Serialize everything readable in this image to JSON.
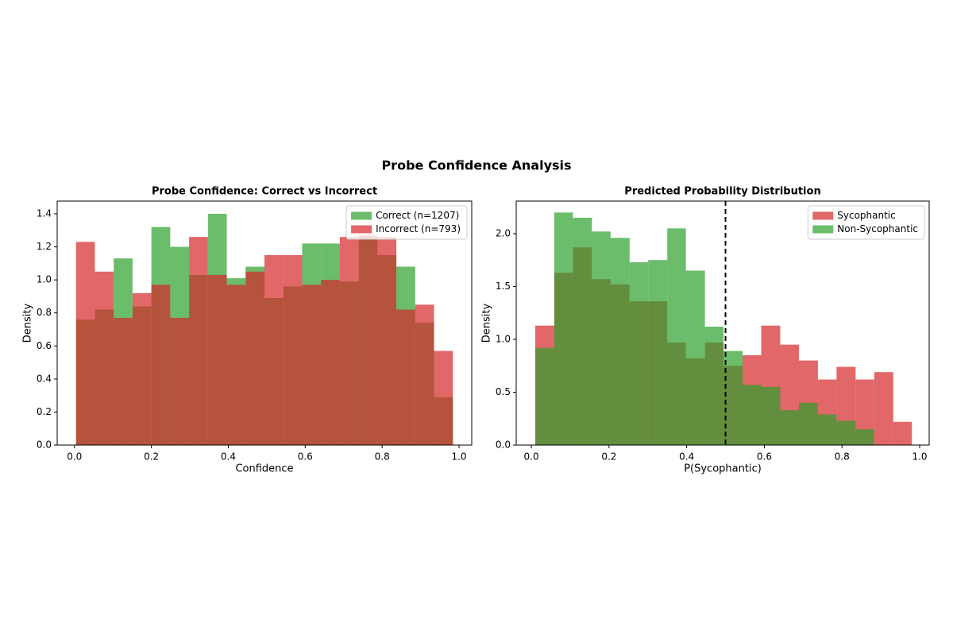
{
  "title": "Probe Confidence Analysis",
  "chart_data": [
    {
      "type": "histogram",
      "title": "Probe Confidence: Correct vs Incorrect",
      "xlabel": "Confidence",
      "ylabel": "Density",
      "xlim": [
        -0.045,
        1.033
      ],
      "ylim": [
        0,
        1.477
      ],
      "xticks": [
        {
          "value": 0,
          "label": "0.0"
        },
        0.2,
        0.4,
        0.6,
        0.8,
        {
          "value": 1,
          "label": "1.0"
        }
      ],
      "yticks": [
        {
          "value": 0,
          "label": "0.0"
        },
        0.2,
        0.4,
        0.6,
        0.8,
        {
          "value": 1,
          "label": "1.0"
        },
        1.2,
        1.4
      ],
      "legend": "upper right",
      "alpha": 0.7,
      "series": [
        {
          "name": "Correct (n=1207)",
          "color": "#2ca02c",
          "bins": [
            0.004,
            0.053,
            0.102,
            0.151,
            0.2,
            0.249,
            0.298,
            0.347,
            0.396,
            0.445,
            0.494,
            0.543,
            0.592,
            0.641,
            0.69,
            0.739,
            0.788,
            0.837,
            0.886,
            0.935,
            0.984
          ],
          "values": [
            0.76,
            0.82,
            1.13,
            0.84,
            1.32,
            1.2,
            1.03,
            1.4,
            1.01,
            1.08,
            0.89,
            0.96,
            1.22,
            1.22,
            0.99,
            1.26,
            1.15,
            1.08,
            0.74,
            0.29
          ]
        },
        {
          "name": "Incorrect (n=793)",
          "color": "#d62728",
          "bins": [
            0.004,
            0.053,
            0.102,
            0.151,
            0.2,
            0.249,
            0.298,
            0.347,
            0.396,
            0.445,
            0.494,
            0.543,
            0.592,
            0.641,
            0.69,
            0.739,
            0.788,
            0.837,
            0.886,
            0.935,
            0.984
          ],
          "values": [
            1.23,
            1.05,
            0.77,
            0.92,
            0.97,
            0.77,
            1.26,
            1.03,
            0.97,
            1.05,
            1.15,
            1.15,
            0.97,
            1.0,
            1.26,
            1.27,
            1.26,
            0.82,
            0.85,
            0.57
          ]
        }
      ]
    },
    {
      "type": "histogram",
      "title": "Predicted Probability Distribution",
      "xlabel": "P(Sycophantic)",
      "ylabel": "Density",
      "xlim": [
        -0.039,
        1.0245
      ],
      "ylim": [
        0,
        2.308
      ],
      "xticks": [
        {
          "value": 0,
          "label": "0.0"
        },
        0.2,
        0.4,
        0.6,
        0.8,
        {
          "value": 1,
          "label": "1.0"
        }
      ],
      "yticks": [
        {
          "value": 0,
          "label": "0.0"
        },
        0.5,
        {
          "value": 1,
          "label": "1.0"
        },
        1.5,
        {
          "value": 2,
          "label": "2.0"
        }
      ],
      "legend": "upper right",
      "alpha": 0.7,
      "threshold": 0.5,
      "series": [
        {
          "name": "Sycophantic",
          "color": "#d62728",
          "bins": [
            0.01,
            0.059,
            0.107,
            0.156,
            0.204,
            0.253,
            0.301,
            0.35,
            0.398,
            0.447,
            0.495,
            0.544,
            0.592,
            0.641,
            0.689,
            0.738,
            0.786,
            0.835,
            0.883,
            0.932,
            0.98
          ],
          "values": [
            1.13,
            1.63,
            1.87,
            1.57,
            1.52,
            1.36,
            1.36,
            0.97,
            0.82,
            0.97,
            0.75,
            0.85,
            1.13,
            0.95,
            0.8,
            0.62,
            0.74,
            0.62,
            0.69,
            0.22
          ]
        },
        {
          "name": "Non-Sycophantic",
          "color": "#2ca02c",
          "bins": [
            0.01,
            0.059,
            0.107,
            0.156,
            0.204,
            0.253,
            0.301,
            0.35,
            0.398,
            0.447,
            0.495,
            0.544,
            0.592,
            0.641,
            0.689,
            0.738,
            0.786,
            0.835,
            0.883
          ],
          "values": [
            0.92,
            2.2,
            2.15,
            2.02,
            1.96,
            1.73,
            1.75,
            2.05,
            1.65,
            1.12,
            0.89,
            0.57,
            0.55,
            0.33,
            0.4,
            0.29,
            0.23,
            0.15
          ]
        }
      ]
    }
  ]
}
